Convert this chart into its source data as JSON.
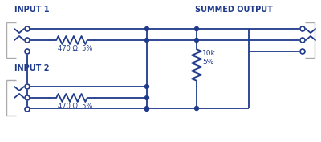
{
  "line_color": "#1f3a8a",
  "bg_color": "#ffffff",
  "text_color": "#1f3a8a",
  "gray_color": "#aaaaaa",
  "dot_color": "#1f3a8a",
  "label_input1": "INPUT 1",
  "label_input2": "INPUT 2",
  "label_output": "SUMMED OUTPUT",
  "label_r1": "470 Ω, 5%",
  "label_r2": "470 Ω, 5%",
  "label_r3": "10k\n5%",
  "figsize": [
    4.0,
    1.77
  ],
  "dpi": 100
}
